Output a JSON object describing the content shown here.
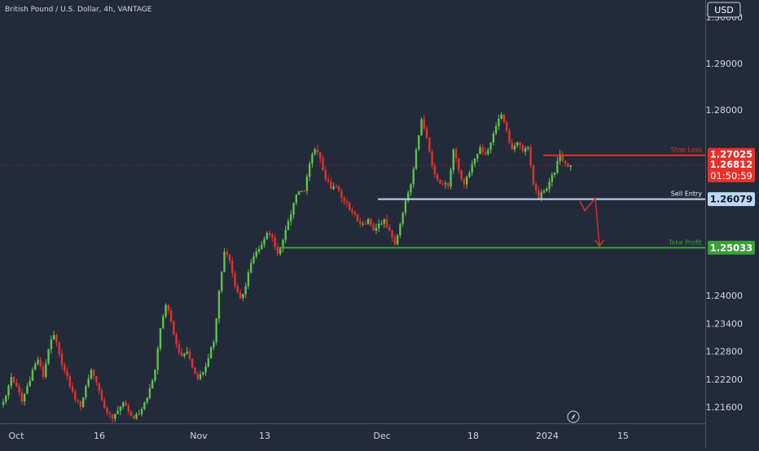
{
  "header": {
    "symbol_title": "British Pound / U.S. Dollar, 4h, VANTAGE",
    "currency": "USD"
  },
  "chart_data": {
    "type": "candlestick",
    "symbol": "British Pound / U.S. Dollar",
    "interval": "4h",
    "source": "VANTAGE",
    "y_axis": {
      "currency": "USD",
      "ticks": [
        "1.30000",
        "1.29000",
        "1.28000",
        "1.24000",
        "1.23400",
        "1.22800",
        "1.22200",
        "1.21600"
      ],
      "ylim": [
        1.2125,
        1.3037
      ]
    },
    "x_axis": {
      "ticks": [
        "Oct",
        "16",
        "Nov",
        "13",
        "Dec",
        "18",
        "2024",
        "15"
      ]
    },
    "price_series": [
      1.2165,
      1.2185,
      1.2225,
      1.2205,
      1.2172,
      1.2205,
      1.224,
      1.2262,
      1.2225,
      1.2285,
      1.2315,
      1.2275,
      1.2238,
      1.2205,
      1.2175,
      1.216,
      1.2205,
      1.224,
      1.2212,
      1.2175,
      1.2148,
      1.2135,
      1.2152,
      1.217,
      1.215,
      1.2135,
      1.2145,
      1.217,
      1.22,
      1.224,
      1.233,
      1.238,
      1.2345,
      1.2295,
      1.227,
      1.228,
      1.2245,
      1.222,
      1.2235,
      1.2265,
      1.23,
      1.241,
      1.2495,
      1.2475,
      1.242,
      1.2395,
      1.242,
      1.247,
      1.2495,
      1.251,
      1.2535,
      1.2525,
      1.249,
      1.252,
      1.256,
      1.26,
      1.2625,
      1.2625,
      1.2685,
      1.2715,
      1.2695,
      1.265,
      1.263,
      1.2635,
      1.261,
      1.26,
      1.258,
      1.256,
      1.2555,
      1.2565,
      1.254,
      1.2555,
      1.2565,
      1.254,
      1.251,
      1.2555,
      1.2605,
      1.264,
      1.2715,
      1.278,
      1.274,
      1.268,
      1.265,
      1.264,
      1.2635,
      1.2715,
      1.267,
      1.264,
      1.2665,
      1.2695,
      1.272,
      1.2705,
      1.273,
      1.2765,
      1.279,
      1.2755,
      1.2715,
      1.273,
      1.271,
      1.272,
      1.264,
      1.261,
      1.2625,
      1.2645,
      1.2665,
      1.2705,
      1.2685,
      1.2681
    ],
    "annotations": {
      "stop_loss": {
        "label": "Stop Loss",
        "price": "1.27025",
        "value": 1.27025,
        "color": "#e8302c"
      },
      "sell_entry": {
        "label": "Sell Entry",
        "price": "1.26079",
        "value": 1.26079,
        "color": "#bcd8f2"
      },
      "take_profit": {
        "label": "Take Profit",
        "price": "1.25033",
        "value": 1.25033,
        "color": "#3b9e3b"
      },
      "last_price": {
        "price": "1.26812",
        "countdown": "01:50:59",
        "value": 1.26812,
        "color": "#e8302c"
      }
    },
    "colors": {
      "background": "#232b3a",
      "up": "#5ec34a",
      "down": "#e8302c",
      "axis_text": "#d1d4dc"
    },
    "grid": false
  }
}
